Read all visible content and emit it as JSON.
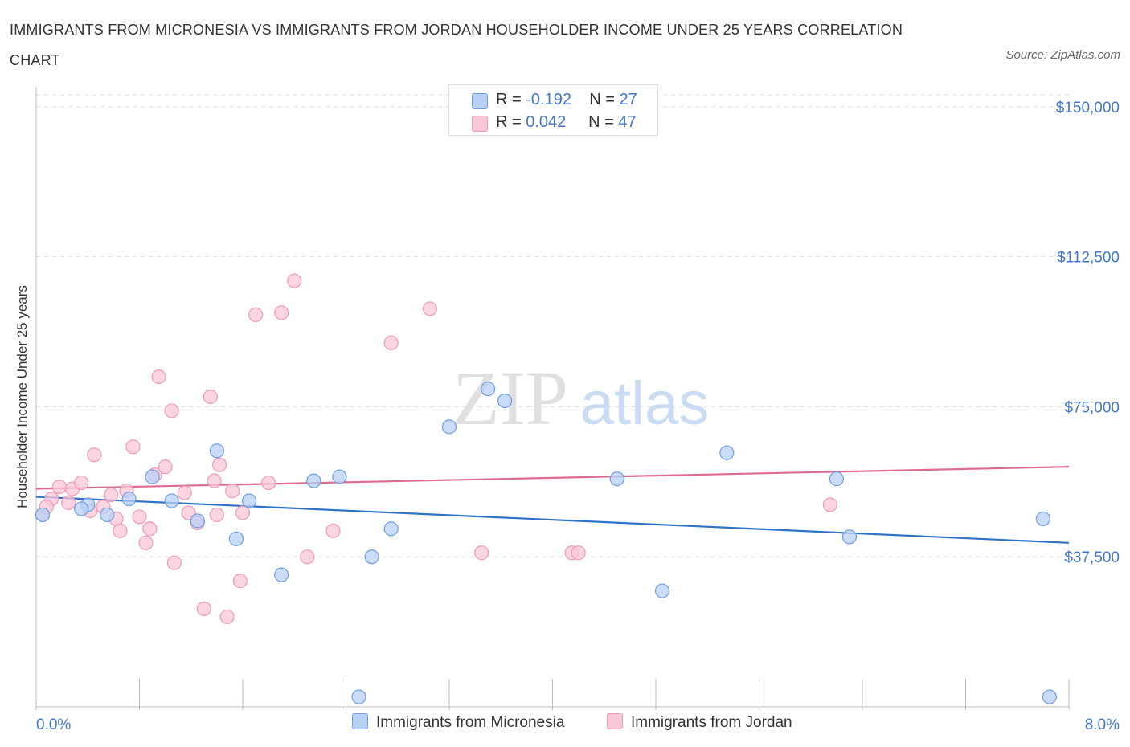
{
  "title": "IMMIGRANTS FROM MICRONESIA VS IMMIGRANTS FROM JORDAN HOUSEHOLDER INCOME UNDER 25 YEARS CORRELATION CHART",
  "source": "Source: ZipAtlas.com",
  "watermark": {
    "zip": "ZIP",
    "atlas": "atlas"
  },
  "legend": {
    "rows": [
      {
        "r_label": "R = ",
        "r_value": "-0.192",
        "n_label": "N = ",
        "n_value": "27"
      },
      {
        "r_label": "R = ",
        "r_value": "0.042",
        "n_label": "N = ",
        "n_value": "47"
      }
    ]
  },
  "colors": {
    "micronesia_fill": "#b8d0f4",
    "micronesia_stroke": "#6f9fe0",
    "micronesia_line": "#2f72c9",
    "jordan_fill": "#f9c8d8",
    "jordan_stroke": "#ee9ab7",
    "jordan_line": "#e06a96",
    "tick_text": "#4477cc",
    "grid": "#dddddd"
  },
  "chart_data": {
    "type": "scatter",
    "title": "IMMIGRANTS FROM MICRONESIA VS IMMIGRANTS FROM JORDAN HOUSEHOLDER INCOME UNDER 25 YEARS CORRELATION CHART",
    "xlabel": "",
    "ylabel": "Householder Income Under 25 years",
    "xlim": [
      0,
      8
    ],
    "ylim": [
      0,
      155000
    ],
    "x_tick_labels": [
      "0.0%",
      "8.0%"
    ],
    "y_ticks": [
      {
        "value": 37500,
        "label": "$37,500"
      },
      {
        "value": 75000,
        "label": "$75,000"
      },
      {
        "value": 112500,
        "label": "$112,500"
      },
      {
        "value": 150000,
        "label": "$150,000"
      }
    ],
    "series": [
      {
        "name": "Immigrants from Micronesia",
        "points": [
          [
            0.05,
            48000
          ],
          [
            0.4,
            50500
          ],
          [
            0.55,
            48000
          ],
          [
            0.72,
            52000
          ],
          [
            0.9,
            57500
          ],
          [
            1.05,
            51500
          ],
          [
            1.25,
            46500
          ],
          [
            1.4,
            64000
          ],
          [
            1.55,
            42000
          ],
          [
            1.65,
            51500
          ],
          [
            1.9,
            33000
          ],
          [
            2.15,
            56500
          ],
          [
            2.35,
            57500
          ],
          [
            2.5,
            2500
          ],
          [
            2.6,
            37500
          ],
          [
            2.75,
            44500
          ],
          [
            3.2,
            70000
          ],
          [
            3.5,
            79500
          ],
          [
            3.63,
            76500
          ],
          [
            4.5,
            57000
          ],
          [
            4.85,
            29000
          ],
          [
            5.35,
            63500
          ],
          [
            6.2,
            57000
          ],
          [
            6.3,
            42500
          ],
          [
            7.8,
            47000
          ],
          [
            7.85,
            2500
          ],
          [
            0.35,
            49500
          ]
        ],
        "trend": {
          "x": [
            0,
            8
          ],
          "y": [
            52500,
            41000
          ]
        }
      },
      {
        "name": "Immigrants from Jordan",
        "points": [
          [
            0.05,
            48000
          ],
          [
            0.12,
            52000
          ],
          [
            0.18,
            55000
          ],
          [
            0.25,
            51000
          ],
          [
            0.28,
            54500
          ],
          [
            0.35,
            56000
          ],
          [
            0.42,
            49000
          ],
          [
            0.45,
            63000
          ],
          [
            0.52,
            50000
          ],
          [
            0.58,
            53000
          ],
          [
            0.62,
            47000
          ],
          [
            0.65,
            44000
          ],
          [
            0.7,
            54000
          ],
          [
            0.75,
            65000
          ],
          [
            0.8,
            47500
          ],
          [
            0.85,
            41000
          ],
          [
            0.88,
            44500
          ],
          [
            0.92,
            58000
          ],
          [
            0.95,
            82500
          ],
          [
            1.0,
            60000
          ],
          [
            1.05,
            74000
          ],
          [
            1.07,
            36000
          ],
          [
            1.15,
            53500
          ],
          [
            1.18,
            48500
          ],
          [
            1.25,
            46000
          ],
          [
            1.3,
            24500
          ],
          [
            1.35,
            77500
          ],
          [
            1.38,
            56500
          ],
          [
            1.4,
            48000
          ],
          [
            1.42,
            60500
          ],
          [
            1.48,
            22500
          ],
          [
            1.52,
            54000
          ],
          [
            1.58,
            31500
          ],
          [
            1.6,
            48500
          ],
          [
            1.7,
            98000
          ],
          [
            1.8,
            56000
          ],
          [
            1.9,
            98500
          ],
          [
            2.0,
            106500
          ],
          [
            2.1,
            37500
          ],
          [
            2.3,
            44000
          ],
          [
            2.75,
            91000
          ],
          [
            3.05,
            99500
          ],
          [
            3.45,
            38500
          ],
          [
            4.15,
            38500
          ],
          [
            4.2,
            38500
          ],
          [
            6.15,
            50500
          ],
          [
            0.08,
            50000
          ]
        ],
        "trend": {
          "x": [
            0,
            8
          ],
          "y": [
            54500,
            60000
          ]
        }
      }
    ]
  }
}
